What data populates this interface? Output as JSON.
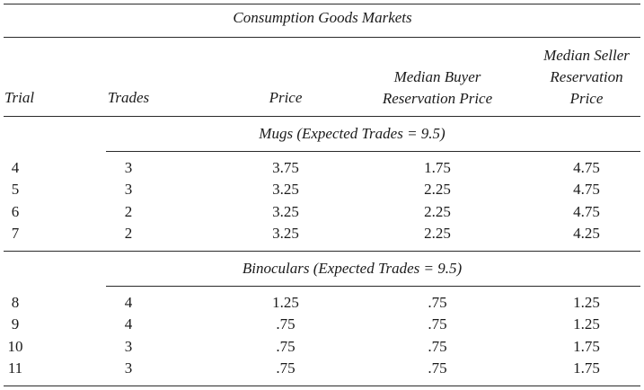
{
  "title": "Consumption Goods Markets",
  "columns": {
    "trial": "Trial",
    "trades": "Trades",
    "price": "Price",
    "buyer": [
      "Median Buyer",
      "Reservation Price"
    ],
    "seller": [
      "Median Seller",
      "Reservation",
      "Price"
    ]
  },
  "sections": [
    {
      "label": "Mugs (Expected Trades = 9.5)",
      "rows": [
        {
          "trial": "4",
          "trades": "3",
          "price": "3.75",
          "buyer": "1.75",
          "seller": "4.75"
        },
        {
          "trial": "5",
          "trades": "3",
          "price": "3.25",
          "buyer": "2.25",
          "seller": "4.75"
        },
        {
          "trial": "6",
          "trades": "2",
          "price": "3.25",
          "buyer": "2.25",
          "seller": "4.75"
        },
        {
          "trial": "7",
          "trades": "2",
          "price": "3.25",
          "buyer": "2.25",
          "seller": "4.25"
        }
      ]
    },
    {
      "label": "Binoculars (Expected Trades = 9.5)",
      "rows": [
        {
          "trial": "8",
          "trades": "4",
          "price": "1.25",
          "buyer": ".75",
          "seller": "1.25"
        },
        {
          "trial": "9",
          "trades": "4",
          "price": ".75",
          "buyer": ".75",
          "seller": "1.25"
        },
        {
          "trial": "10",
          "trades": "3",
          "price": ".75",
          "buyer": ".75",
          "seller": "1.75"
        },
        {
          "trial": "11",
          "trades": "3",
          "price": ".75",
          "buyer": ".75",
          "seller": "1.75"
        }
      ]
    }
  ]
}
